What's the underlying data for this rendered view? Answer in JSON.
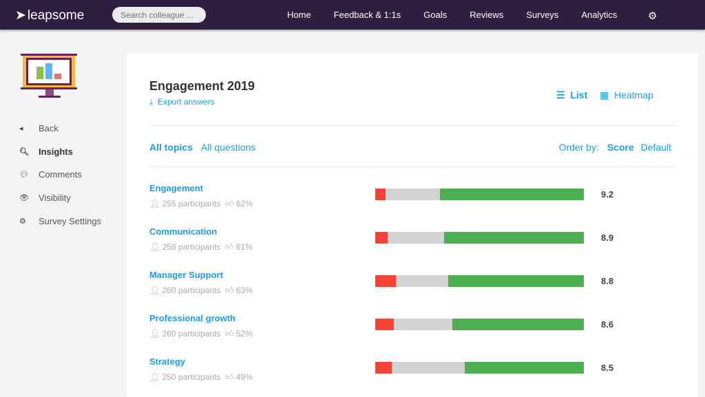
{
  "nav": {
    "brand": "leapsome",
    "search_placeholder": "Search colleague ...",
    "items": [
      "Home",
      "Feedback & 1:1s",
      "Goals",
      "Reviews",
      "Surveys",
      "Analytics"
    ]
  },
  "sidebar": {
    "items": [
      {
        "label": "Back",
        "icon": "caret-left-icon"
      },
      {
        "label": "Insights",
        "icon": "search-icon",
        "active": true
      },
      {
        "label": "Comments",
        "icon": "comments-icon"
      },
      {
        "label": "Visibility",
        "icon": "eye-slash-icon"
      },
      {
        "label": "Survey Settings",
        "icon": "gear-icon"
      }
    ]
  },
  "main": {
    "title": "Engagement 2019",
    "export": "Export answers",
    "view_list": "List",
    "view_heatmap": "Heatmap",
    "tab_topics": "All topics",
    "tab_questions": "All questions",
    "order_by": "Order by:",
    "order_score": "Score",
    "order_default": "Default",
    "colors": {
      "negative": "#f44336",
      "neutral": "#d3d3d3",
      "positive": "#4caf50"
    },
    "topics": [
      {
        "name": "Engagement",
        "participants": "255 participants",
        "favorable": "62%",
        "score": "9.2",
        "dist": [
          5,
          26,
          69
        ]
      },
      {
        "name": "Communication",
        "participants": "258 participants",
        "favorable": "61%",
        "score": "8.9",
        "dist": [
          6,
          27,
          67
        ]
      },
      {
        "name": "Manager Support",
        "participants": "260 participants",
        "favorable": "63%",
        "score": "8.8",
        "dist": [
          10,
          25,
          65
        ]
      },
      {
        "name": "Professional growth",
        "participants": "260 participants",
        "favorable": "52%",
        "score": "8.6",
        "dist": [
          9,
          28,
          63
        ]
      },
      {
        "name": "Strategy",
        "participants": "250 participants",
        "favorable": "49%",
        "score": "8.5",
        "dist": [
          8,
          35,
          57
        ]
      }
    ]
  }
}
